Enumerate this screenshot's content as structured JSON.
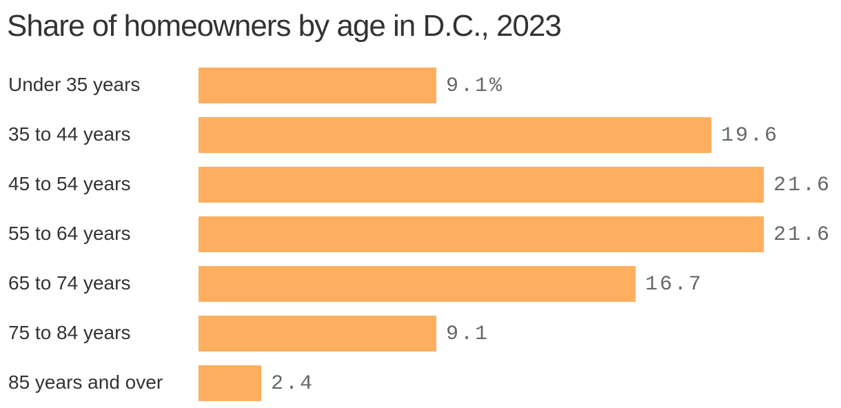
{
  "chart_data": {
    "type": "bar",
    "orientation": "horizontal",
    "title": "Share of homeowners by age in D.C., 2023",
    "xlabel": "",
    "ylabel": "",
    "unit": "%",
    "categories": [
      "Under 35 years",
      "35 to 44 years",
      "45 to 54 years",
      "55 to 64 years",
      "65 to 74 years",
      "75 to 84 years",
      "85 years and over"
    ],
    "values": [
      9.1,
      19.6,
      21.6,
      21.6,
      16.7,
      9.1,
      2.4
    ],
    "value_labels": [
      "9.1%",
      "19.6",
      "21.6",
      "21.6",
      "16.7",
      "9.1",
      "2.4"
    ],
    "xlim": [
      0,
      21.6
    ],
    "grid": false,
    "legend": null,
    "bar_color": "#FDAF5F"
  },
  "colors": {
    "bar": "#FDAF5F",
    "title_text": "#333333",
    "label_text": "#333333",
    "value_text": "#666666",
    "background": "#FFFFFF"
  }
}
